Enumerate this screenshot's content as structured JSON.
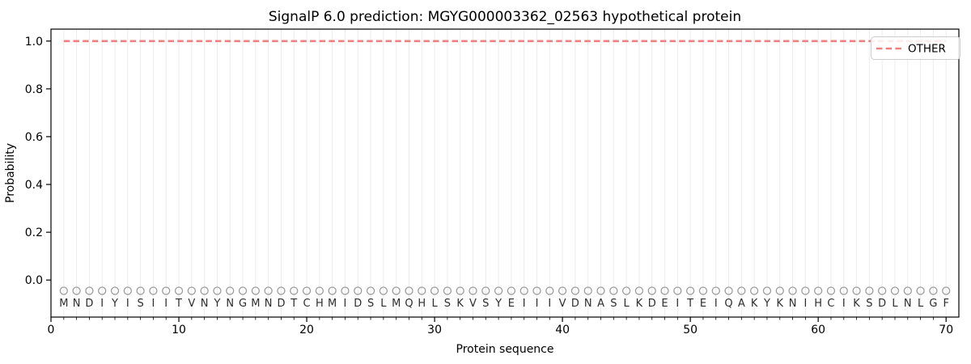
{
  "title": "SignalP 6.0 prediction: MGYG000003362_02563 hypothetical protein",
  "chart_data": {
    "type": "line",
    "title": "SignalP 6.0 prediction: MGYG000003362_02563 hypothetical protein",
    "xlabel": "Protein sequence",
    "ylabel": "Probability",
    "xlim": [
      0,
      71
    ],
    "ylim": [
      -0.155,
      1.05
    ],
    "grid": "vertical gridline at every residue position",
    "x_tick_values": [
      0,
      10,
      20,
      30,
      40,
      50,
      60,
      70
    ],
    "x_tick_labels": [
      "0",
      "10",
      "20",
      "30",
      "40",
      "50",
      "60",
      "70"
    ],
    "y_tick_values": [
      0.0,
      0.2,
      0.4,
      0.6,
      0.8,
      1.0
    ],
    "y_tick_labels": [
      "0.0",
      "0.2",
      "0.4",
      "0.6",
      "0.8",
      "1.0"
    ],
    "series": [
      {
        "name": "OTHER",
        "line_style": "dashed",
        "color": "#f08080",
        "x_range": [
          1,
          70
        ],
        "y_constant": 1.0
      }
    ],
    "sequence": "MNDIYISIITVNYNGMNDTCHMIDSLMQHLSKVSYEIIIVDNASLKDEITEIQAKYKNIHCIKSDLNLGF",
    "sequence_length": 70,
    "marker_shape": "open-circle",
    "marker_y_value": -0.045,
    "residue_letter_y_value": -0.095,
    "legend": {
      "position": "upper right",
      "entries": [
        {
          "label": "OTHER",
          "color": "#f08080",
          "line_style": "dashed"
        }
      ]
    }
  },
  "colors": {
    "accent_line": "#f08080",
    "grid": "#ececec",
    "marker": "#9c9c9c",
    "letter": "#2e2e2e",
    "spine": "#000000",
    "tick_text": "#000000",
    "legend_border": "#cccccc",
    "background": "#ffffff"
  }
}
